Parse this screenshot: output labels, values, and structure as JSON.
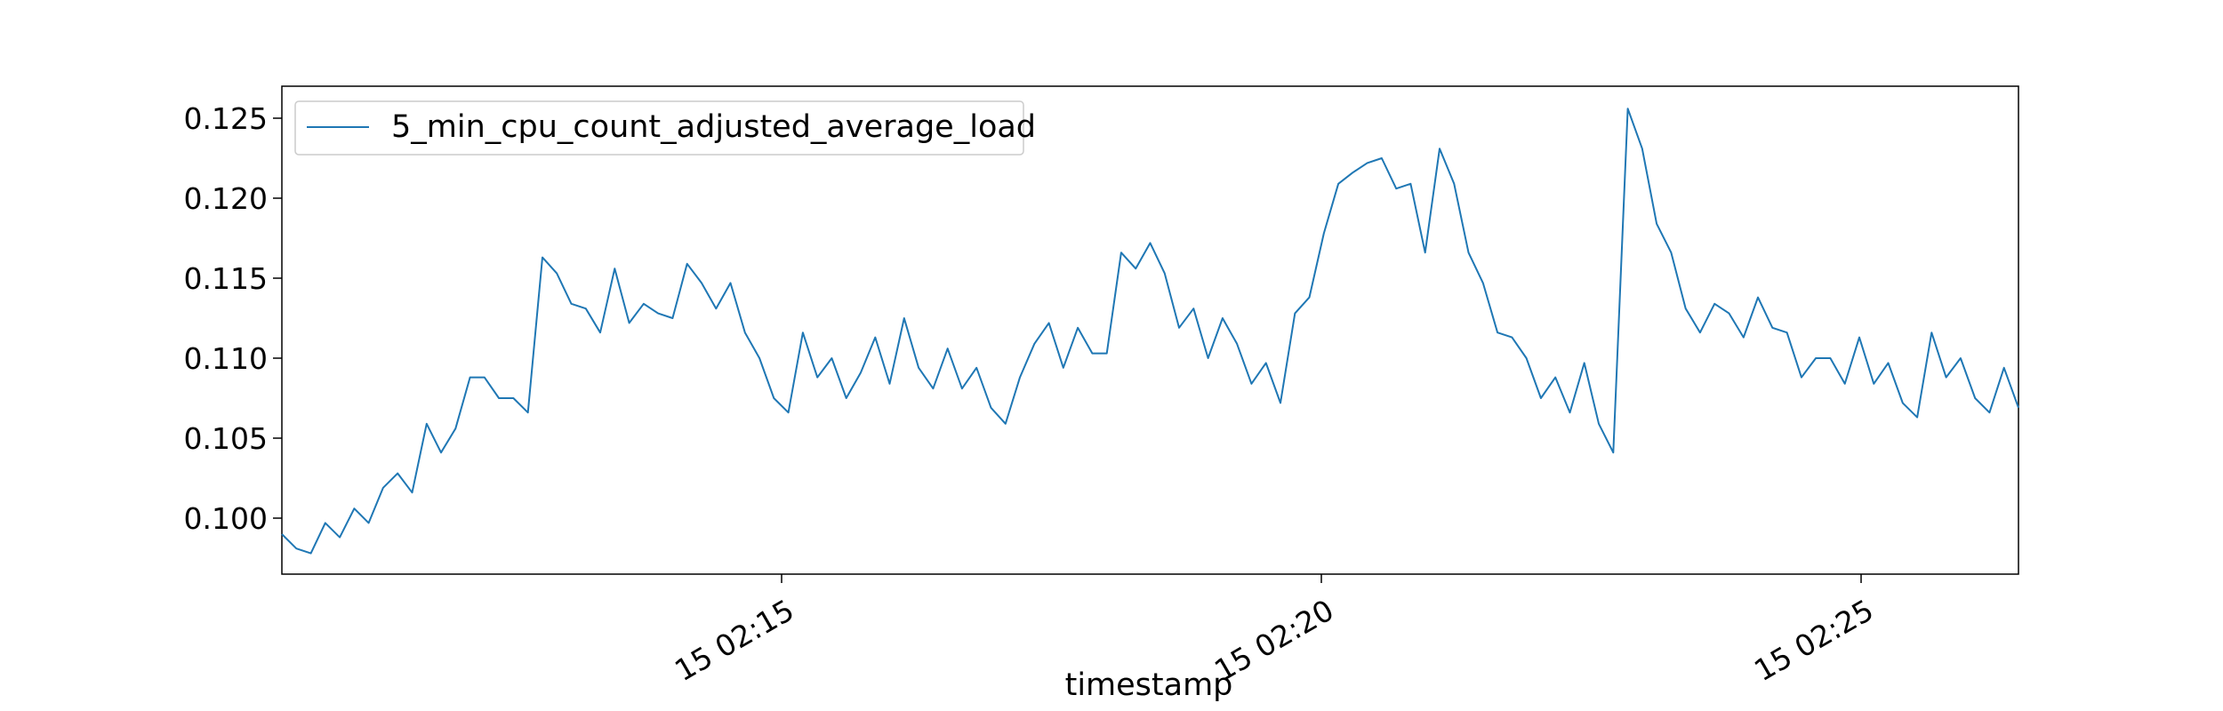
{
  "chart_data": {
    "type": "line",
    "title": "",
    "xlabel": "timestamp",
    "ylabel": "",
    "x_tick_labels": [
      "15 02:15",
      "15 02:20",
      "15 02:25"
    ],
    "y_tick_labels": [
      "0.100",
      "0.105",
      "0.110",
      "0.115",
      "0.120",
      "0.125"
    ],
    "y_ticks": [
      0.1,
      0.105,
      0.11,
      0.115,
      0.12,
      0.125
    ],
    "ylim": [
      0.0965,
      0.127
    ],
    "grid": false,
    "legend_position": "upper left",
    "series": [
      {
        "name": "5_min_cpu_count_adjusted_average_load",
        "color": "#1f77b4",
        "values": [
          0.099,
          0.0981,
          0.0978,
          0.0997,
          0.0988,
          0.1006,
          0.0997,
          0.1019,
          0.1028,
          0.1016,
          0.1059,
          0.1041,
          0.1056,
          0.1088,
          0.1088,
          0.1075,
          0.1075,
          0.1066,
          0.1163,
          0.1153,
          0.1134,
          0.1131,
          0.1116,
          0.1156,
          0.1122,
          0.1134,
          0.1128,
          0.1125,
          0.1159,
          0.1147,
          0.1131,
          0.1147,
          0.1116,
          0.11,
          0.1075,
          0.1066,
          0.1116,
          0.1088,
          0.11,
          0.1075,
          0.1091,
          0.1113,
          0.1084,
          0.1125,
          0.1094,
          0.1081,
          0.1106,
          0.1081,
          0.1094,
          0.1069,
          0.1059,
          0.1088,
          0.1109,
          0.1122,
          0.1094,
          0.1119,
          0.1103,
          0.1103,
          0.1166,
          0.1156,
          0.1172,
          0.1153,
          0.1119,
          0.1131,
          0.11,
          0.1125,
          0.1109,
          0.1084,
          0.1097,
          0.1072,
          0.1128,
          0.1138,
          0.1178,
          0.1209,
          0.1216,
          0.1222,
          0.1225,
          0.1206,
          0.1209,
          0.1166,
          0.1231,
          0.1209,
          0.1166,
          0.1147,
          0.1116,
          0.1113,
          0.11,
          0.1075,
          0.1088,
          0.1066,
          0.1097,
          0.1059,
          0.1041,
          0.1256,
          0.1231,
          0.1184,
          0.1166,
          0.1131,
          0.1116,
          0.1134,
          0.1128,
          0.1113,
          0.1138,
          0.1119,
          0.1116,
          0.1088,
          0.11,
          0.11,
          0.1084,
          0.1113,
          0.1084,
          0.1097,
          0.1072,
          0.1063,
          0.1116,
          0.1088,
          0.11,
          0.1075,
          0.1066,
          0.1094,
          0.1069
        ]
      }
    ]
  }
}
